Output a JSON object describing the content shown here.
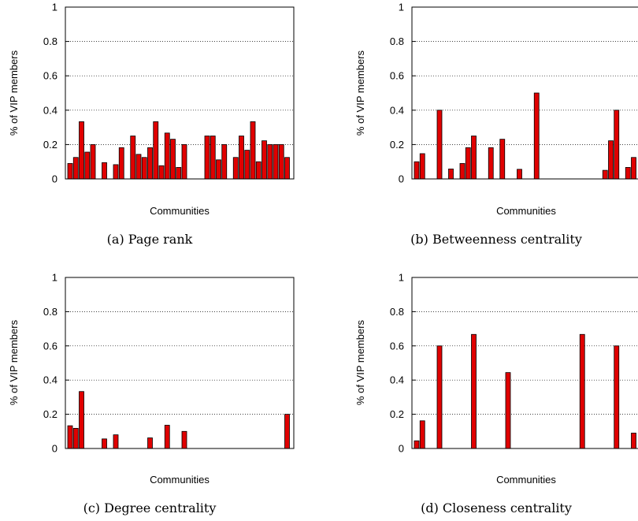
{
  "chart_data": [
    {
      "type": "bar",
      "caption": "(a)  Page rank",
      "xlabel": "Communities",
      "ylabel": "% of VIP members",
      "ylim": [
        0,
        1
      ],
      "yticks": [
        "0",
        "0.2",
        "0.4",
        "0.6",
        "0.8",
        "1"
      ],
      "grid": true,
      "values": [
        0.09,
        0.125,
        0.333,
        0.156,
        0.2,
        0,
        0.095,
        0,
        0.083,
        0.182,
        0,
        0.25,
        0.143,
        0.125,
        0.182,
        0.333,
        0.077,
        0.267,
        0.231,
        0.067,
        0.2,
        0,
        0,
        0,
        0.25,
        0.25,
        0.111,
        0.2,
        0,
        0.125,
        0.25,
        0.167,
        0.333,
        0.1,
        0.222,
        0.2,
        0.2,
        0.2,
        0.125
      ]
    },
    {
      "type": "bar",
      "caption": "(b)  Betweenness centrality",
      "xlabel": "Communities",
      "ylabel": "% of VIP members",
      "ylim": [
        0,
        1
      ],
      "yticks": [
        "0",
        "0.2",
        "0.4",
        "0.6",
        "0.8",
        "1"
      ],
      "grid": true,
      "values": [
        0.1,
        0.147,
        0,
        0,
        0.4,
        0,
        0.058,
        0,
        0.09,
        0.182,
        0.25,
        0,
        0,
        0.182,
        0,
        0.231,
        0,
        0,
        0.056,
        0,
        0,
        0.5,
        0,
        0,
        0,
        0,
        0,
        0,
        0,
        0,
        0,
        0,
        0,
        0.05,
        0.222,
        0.4,
        0,
        0.067,
        0.125
      ]
    },
    {
      "type": "bar",
      "caption": "(c)  Degree centrality",
      "xlabel": "Communities",
      "ylabel": "% of VIP members",
      "ylim": [
        0,
        1
      ],
      "yticks": [
        "0",
        "0.2",
        "0.4",
        "0.6",
        "0.8",
        "1"
      ],
      "grid": true,
      "values": [
        0.133,
        0.118,
        0.333,
        0,
        0,
        0,
        0.056,
        0,
        0.08,
        0,
        0,
        0,
        0,
        0,
        0.062,
        0,
        0,
        0.136,
        0,
        0,
        0.1,
        0,
        0,
        0,
        0,
        0,
        0,
        0,
        0,
        0,
        0,
        0,
        0,
        0,
        0,
        0,
        0,
        0,
        0.2
      ]
    },
    {
      "type": "bar",
      "caption": "(d)  Closeness centrality",
      "xlabel": "Communities",
      "ylabel": "% of VIP members",
      "ylim": [
        0,
        1
      ],
      "yticks": [
        "0",
        "0.2",
        "0.4",
        "0.6",
        "0.8",
        "1"
      ],
      "grid": true,
      "values": [
        0.045,
        0.162,
        0,
        0,
        0.6,
        0,
        0,
        0,
        0,
        0,
        0.667,
        0,
        0,
        0,
        0,
        0,
        0.444,
        0,
        0,
        0,
        0,
        0,
        0,
        0,
        0,
        0,
        0,
        0,
        0,
        0.667,
        0,
        0,
        0,
        0,
        0,
        0.6,
        0,
        0,
        0.09
      ]
    }
  ]
}
